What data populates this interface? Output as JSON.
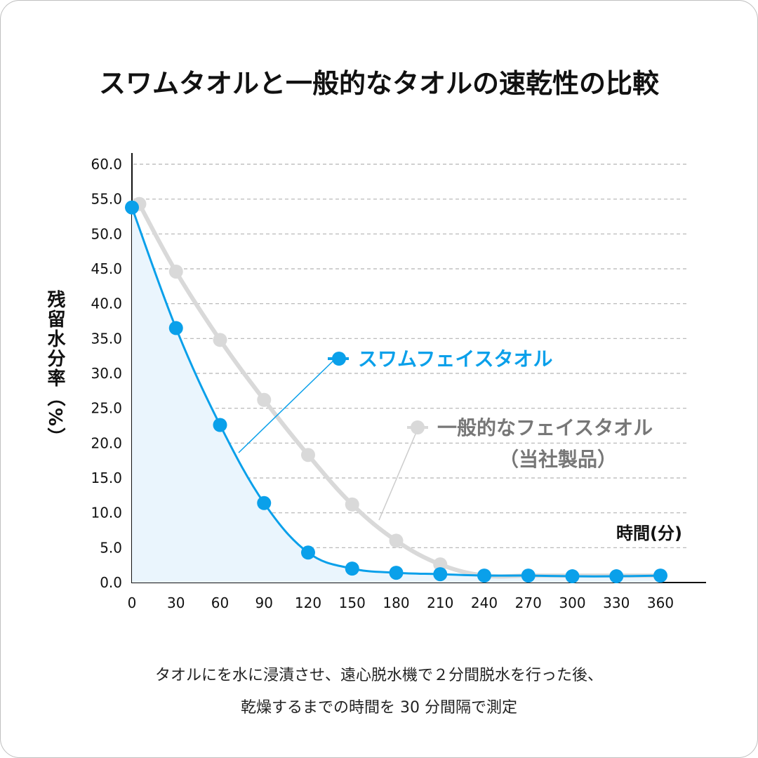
{
  "chart_data": {
    "type": "line",
    "title": "スワムタオルと一般的なタオルの速乾性の比較",
    "ylabel": "残留水分率（%）",
    "xlabel": "時間(分)",
    "x": [
      0,
      30,
      60,
      90,
      120,
      150,
      180,
      210,
      240,
      270,
      300,
      330,
      360
    ],
    "xticks": [
      "0",
      "30",
      "60",
      "90",
      "120",
      "150",
      "180",
      "210",
      "240",
      "270",
      "300",
      "330",
      "360"
    ],
    "yticks": [
      "0.0",
      "5.0",
      "10.0",
      "15.0",
      "20.0",
      "25.0",
      "30.0",
      "35.0",
      "40.0",
      "45.0",
      "50.0",
      "55.0",
      "60.0"
    ],
    "ylim": [
      0,
      60
    ],
    "grid": true,
    "series": [
      {
        "name": "一般的なフェイスタオル",
        "name_sub": "（当社製品）",
        "color": "#d9d9d9",
        "label_color": "#777777",
        "x": [
          5,
          30,
          60,
          90,
          120,
          150,
          180,
          210
        ],
        "values": [
          54.3,
          44.6,
          34.8,
          26.2,
          18.3,
          11.2,
          6.0,
          2.6
        ],
        "tail_x": [
          240,
          270,
          300,
          330,
          360
        ],
        "tail_values": [
          1.0,
          1.0,
          1.0,
          1.0,
          1.0
        ]
      },
      {
        "name": "スワムフェイスタオル",
        "color": "#0aa0ea",
        "label_color": "#0aa0ea",
        "x": [
          0,
          30,
          60,
          90,
          120,
          150,
          180,
          210,
          240,
          270,
          300,
          330,
          360
        ],
        "values": [
          53.8,
          36.5,
          22.6,
          11.4,
          4.3,
          2.0,
          1.4,
          1.2,
          1.0,
          1.0,
          0.9,
          0.9,
          1.0
        ]
      }
    ]
  },
  "caption": {
    "line1": "タオルにを水に浸漬させ、遠心脱水機で２分間脱水を行った後、",
    "line2": "乾燥するまでの時間を 30 分間隔で測定"
  }
}
